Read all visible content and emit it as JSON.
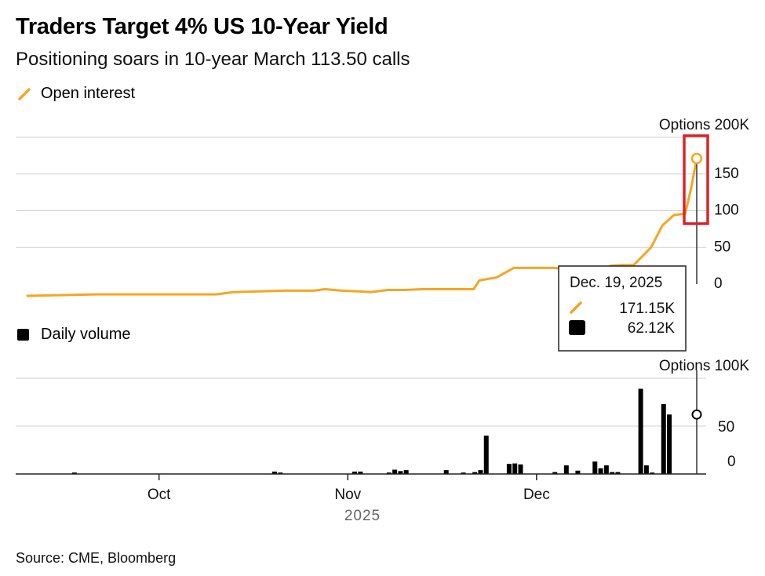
{
  "title": "Traders Target 4% US 10-Year Yield",
  "subtitle": "Positioning soars in 10-year March 113.50 calls",
  "source": "Source: CME, Bloomberg",
  "colors": {
    "open_interest": "#f5a623",
    "volume": "#000000",
    "highlight": "#d9252b",
    "grid": "#d0d0d0"
  },
  "chart_data": [
    {
      "type": "line",
      "title": "Open interest",
      "legend": "Open interest",
      "unit_label": "Options 200K",
      "ylim": [
        0,
        200
      ],
      "yticks": [
        0,
        50,
        100,
        150
      ],
      "x": [
        0,
        12,
        25,
        33,
        36,
        45,
        50,
        52,
        55,
        58,
        60,
        63,
        66,
        69,
        71,
        75,
        78,
        79,
        82,
        85,
        88,
        90,
        92,
        95,
        96,
        99,
        101,
        102,
        104,
        106,
        109,
        111,
        113,
        115,
        116,
        117
      ],
      "values": [
        -16,
        -14,
        -14,
        -14,
        -11,
        -9,
        -9,
        -7,
        -9,
        -10,
        -11,
        -8,
        -8,
        -7,
        -7,
        -7,
        -7,
        5,
        9,
        22,
        22,
        22,
        22,
        20,
        21,
        23,
        22,
        25,
        26,
        26,
        50,
        80,
        94,
        96,
        130,
        171.15
      ]
    },
    {
      "type": "bar",
      "title": "Daily volume",
      "legend": "Daily volume",
      "unit_label": "Options 100K",
      "ylim": [
        0,
        100
      ],
      "yticks": [
        0,
        50
      ],
      "bars": [
        {
          "x": 8,
          "value": 1.5
        },
        {
          "x": 43,
          "value": 2.5
        },
        {
          "x": 44,
          "value": 1.5
        },
        {
          "x": 57,
          "value": 2.5
        },
        {
          "x": 58,
          "value": 2.5
        },
        {
          "x": 63,
          "value": 1.5
        },
        {
          "x": 64,
          "value": 4.5
        },
        {
          "x": 65,
          "value": 3
        },
        {
          "x": 66,
          "value": 4
        },
        {
          "x": 73,
          "value": 4
        },
        {
          "x": 76,
          "value": 1.5
        },
        {
          "x": 78,
          "value": 2
        },
        {
          "x": 79,
          "value": 4
        },
        {
          "x": 80,
          "value": 40
        },
        {
          "x": 84,
          "value": 10.5
        },
        {
          "x": 85,
          "value": 11
        },
        {
          "x": 86,
          "value": 10
        },
        {
          "x": 92,
          "value": 2
        },
        {
          "x": 94,
          "value": 9
        },
        {
          "x": 96,
          "value": 3.5
        },
        {
          "x": 99,
          "value": 13
        },
        {
          "x": 100,
          "value": 6
        },
        {
          "x": 101,
          "value": 9
        },
        {
          "x": 102,
          "value": 2
        },
        {
          "x": 103,
          "value": 2
        },
        {
          "x": 107,
          "value": 89
        },
        {
          "x": 108,
          "value": 9
        },
        {
          "x": 109,
          "value": 1.5
        },
        {
          "x": 111,
          "value": 73
        },
        {
          "x": 112,
          "value": 62.12
        }
      ],
      "ylabel": ""
    }
  ],
  "x_axis": {
    "ticks": [
      {
        "label": "Oct",
        "x": 23
      },
      {
        "label": "Nov",
        "x": 56
      },
      {
        "label": "Dec",
        "x": 89
      }
    ],
    "year_label": "2025",
    "xlim": [
      -2,
      112
    ]
  },
  "tooltip": {
    "date": "Dec. 19, 2025",
    "open_interest": "171.15K",
    "volume": "62.12K"
  }
}
